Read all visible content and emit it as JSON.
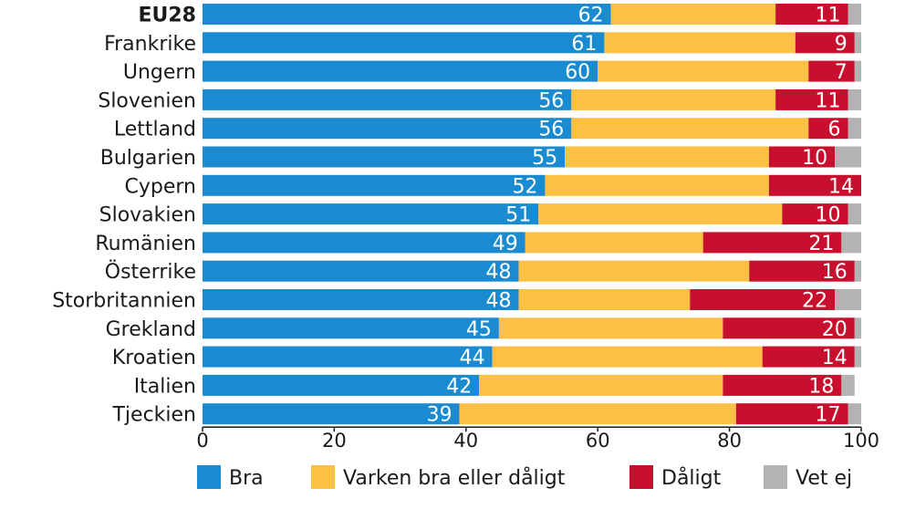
{
  "chart_data": {
    "type": "bar",
    "orientation": "horizontal",
    "stacked": true,
    "categories": [
      "EU28",
      "Frankrike",
      "Ungern",
      "Slovenien",
      "Lettland",
      "Bulgarien",
      "Cypern",
      "Slovakien",
      "Rumänien",
      "Österrike",
      "Storbritannien",
      "Grekland",
      "Kroatien",
      "Italien",
      "Tjeckien"
    ],
    "bold_categories": [
      "EU28"
    ],
    "series": [
      {
        "name": "Bra",
        "color": "#1a8bd0",
        "values": [
          62,
          61,
          60,
          56,
          56,
          55,
          52,
          51,
          49,
          48,
          48,
          45,
          44,
          42,
          39
        ],
        "labeled": true
      },
      {
        "name": "Varken bra eller dåligt",
        "color": "#fcc044",
        "values": [
          25,
          29,
          32,
          31,
          36,
          31,
          34,
          37,
          27,
          35,
          26,
          34,
          41,
          37,
          42
        ],
        "labeled": false
      },
      {
        "name": "Dåligt",
        "color": "#c8102e",
        "values": [
          11,
          9,
          7,
          11,
          6,
          10,
          14,
          10,
          21,
          16,
          22,
          20,
          14,
          18,
          17
        ],
        "labeled": true
      },
      {
        "name": "Vet ej",
        "color": "#b3b3b3",
        "values": [
          2,
          1,
          1,
          2,
          2,
          4,
          0,
          2,
          3,
          1,
          4,
          1,
          1,
          2,
          2
        ],
        "labeled": false
      }
    ],
    "xlim": [
      0,
      100
    ],
    "xticks": [
      "0",
      "20",
      "40",
      "60",
      "80",
      "100"
    ],
    "grid": false,
    "legend_position": "bottom"
  }
}
